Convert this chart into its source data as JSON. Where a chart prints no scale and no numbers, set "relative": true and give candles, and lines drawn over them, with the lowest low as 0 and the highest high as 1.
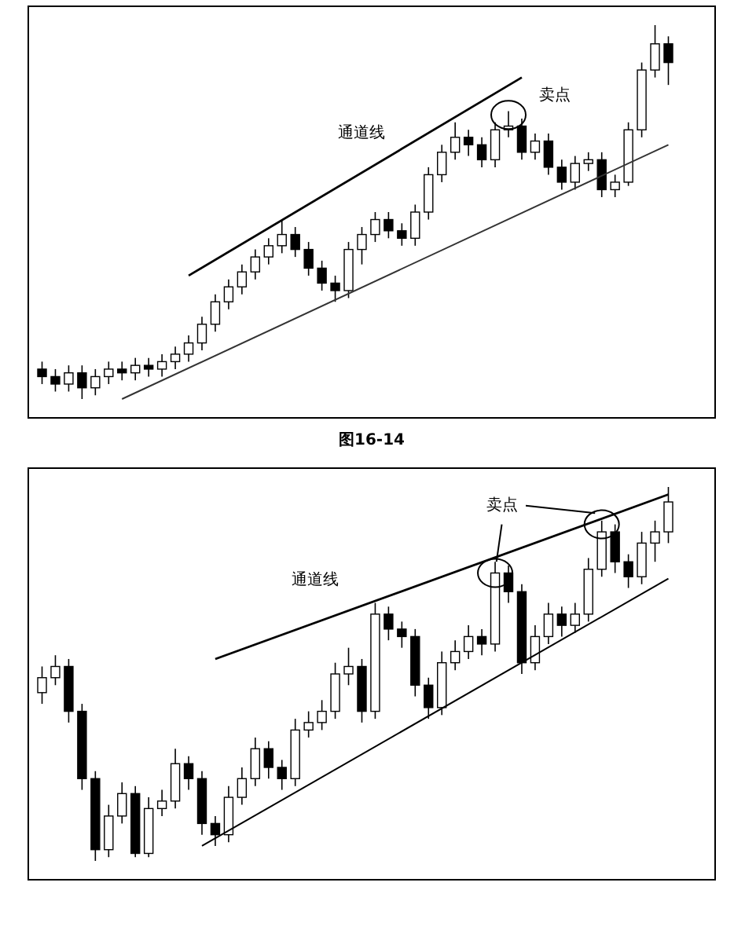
{
  "chart_data": [
    {
      "type": "candlestick",
      "relative": true,
      "annotations": [
        "通道线",
        "卖点",
        "图16-14"
      ],
      "categories": [
        null,
        null,
        null,
        null,
        null,
        null,
        null,
        null,
        null,
        null,
        null,
        null,
        null,
        null,
        null,
        null,
        null,
        null,
        null,
        null,
        null,
        null,
        null,
        null,
        null,
        null,
        null,
        null,
        null,
        null,
        null,
        null,
        null,
        null,
        null,
        null,
        null,
        null,
        null,
        null,
        null,
        null,
        null,
        null,
        null,
        null,
        null,
        null
      ],
      "ohlc": [
        [
          0.08,
          0.1,
          0.04,
          0.06
        ],
        [
          0.06,
          0.08,
          0.02,
          0.04
        ],
        [
          0.04,
          0.09,
          0.02,
          0.07
        ],
        [
          0.07,
          0.09,
          0,
          0.03
        ],
        [
          0.03,
          0.08,
          0.01,
          0.06
        ],
        [
          0.06,
          0.1,
          0.04,
          0.08
        ],
        [
          0.08,
          0.1,
          0.05,
          0.07
        ],
        [
          0.07,
          0.11,
          0.05,
          0.09
        ],
        [
          0.09,
          0.11,
          0.06,
          0.08
        ],
        [
          0.08,
          0.12,
          0.06,
          0.1
        ],
        [
          0.1,
          0.14,
          0.08,
          0.12
        ],
        [
          0.12,
          0.17,
          0.1,
          0.15
        ],
        [
          0.15,
          0.22,
          0.13,
          0.2
        ],
        [
          0.2,
          0.28,
          0.18,
          0.26
        ],
        [
          0.26,
          0.32,
          0.24,
          0.3
        ],
        [
          0.3,
          0.36,
          0.28,
          0.34
        ],
        [
          0.34,
          0.4,
          0.32,
          0.38
        ],
        [
          0.38,
          0.43,
          0.36,
          0.41
        ],
        [
          0.41,
          0.48,
          0.39,
          0.44
        ],
        [
          0.44,
          0.46,
          0.38,
          0.4
        ],
        [
          0.4,
          0.42,
          0.33,
          0.35
        ],
        [
          0.35,
          0.37,
          0.29,
          0.31
        ],
        [
          0.31,
          0.33,
          0.26,
          0.29
        ],
        [
          0.29,
          0.42,
          0.27,
          0.4
        ],
        [
          0.4,
          0.46,
          0.36,
          0.44
        ],
        [
          0.44,
          0.5,
          0.42,
          0.48
        ],
        [
          0.48,
          0.5,
          0.43,
          0.45
        ],
        [
          0.45,
          0.47,
          0.41,
          0.43
        ],
        [
          0.43,
          0.52,
          0.41,
          0.5
        ],
        [
          0.5,
          0.62,
          0.48,
          0.6
        ],
        [
          0.6,
          0.68,
          0.58,
          0.66
        ],
        [
          0.66,
          0.74,
          0.64,
          0.7
        ],
        [
          0.7,
          0.72,
          0.65,
          0.68
        ],
        [
          0.68,
          0.7,
          0.62,
          0.64
        ],
        [
          0.64,
          0.74,
          0.62,
          0.72
        ],
        [
          0.72,
          0.77,
          0.7,
          0.73
        ],
        [
          0.73,
          0.75,
          0.64,
          0.66
        ],
        [
          0.66,
          0.71,
          0.64,
          0.69
        ],
        [
          0.69,
          0.71,
          0.6,
          0.62
        ],
        [
          0.62,
          0.64,
          0.56,
          0.58
        ],
        [
          0.58,
          0.65,
          0.56,
          0.63
        ],
        [
          0.63,
          0.66,
          0.61,
          0.64
        ],
        [
          0.64,
          0.66,
          0.54,
          0.56
        ],
        [
          0.56,
          0.6,
          0.54,
          0.58
        ],
        [
          0.58,
          0.74,
          0.57,
          0.72
        ],
        [
          0.72,
          0.9,
          0.7,
          0.88
        ],
        [
          0.88,
          1.0,
          0.86,
          0.95
        ],
        [
          0.95,
          0.97,
          0.84,
          0.9
        ]
      ],
      "series": [
        {
          "type": "line",
          "color": "#000000",
          "values": [
            null,
            null,
            null,
            null,
            null,
            null,
            null,
            null,
            null,
            null,
            null,
            0.33,
            null,
            null,
            null,
            null,
            null,
            null,
            null,
            null,
            null,
            null,
            null,
            null,
            null,
            null,
            null,
            null,
            null,
            null,
            null,
            null,
            null,
            null,
            null,
            null,
            0.86,
            null,
            null,
            null,
            null,
            null,
            null,
            null,
            null,
            null,
            null,
            null
          ]
        },
        {
          "type": "line",
          "color": "#333333",
          "values": [
            null,
            null,
            null,
            null,
            null,
            null,
            0,
            null,
            null,
            null,
            null,
            null,
            null,
            null,
            null,
            null,
            null,
            null,
            null,
            null,
            null,
            null,
            null,
            null,
            null,
            null,
            null,
            null,
            null,
            null,
            null,
            null,
            null,
            null,
            null,
            null,
            null,
            null,
            null,
            null,
            null,
            null,
            null,
            null,
            null,
            null,
            null,
            0.68
          ]
        }
      ]
    },
    {
      "type": "candlestick",
      "relative": true,
      "annotations": [
        "通道线",
        "卖点"
      ],
      "categories": [
        null,
        null,
        null,
        null,
        null,
        null,
        null,
        null,
        null,
        null,
        null,
        null,
        null,
        null,
        null,
        null,
        null,
        null,
        null,
        null,
        null,
        null,
        null,
        null,
        null,
        null,
        null,
        null,
        null,
        null,
        null,
        null,
        null,
        null,
        null,
        null,
        null,
        null,
        null,
        null,
        null,
        null,
        null,
        null,
        null,
        null,
        null,
        null
      ],
      "ohlc": [
        [
          0.45,
          0.52,
          0.42,
          0.49
        ],
        [
          0.49,
          0.55,
          0.47,
          0.52
        ],
        [
          0.52,
          0.54,
          0.37,
          0.4
        ],
        [
          0.4,
          0.42,
          0.19,
          0.22
        ],
        [
          0.22,
          0.24,
          0,
          0.03
        ],
        [
          0.03,
          0.15,
          0.01,
          0.12
        ],
        [
          0.12,
          0.21,
          0.1,
          0.18
        ],
        [
          0.18,
          0.2,
          0.01,
          0.02
        ],
        [
          0.02,
          0.17,
          0.01,
          0.14
        ],
        [
          0.14,
          0.19,
          0.12,
          0.16
        ],
        [
          0.16,
          0.3,
          0.14,
          0.26
        ],
        [
          0.26,
          0.28,
          0.19,
          0.22
        ],
        [
          0.22,
          0.24,
          0.07,
          0.1
        ],
        [
          0.1,
          0.12,
          0.04,
          0.07
        ],
        [
          0.07,
          0.2,
          0.05,
          0.17
        ],
        [
          0.17,
          0.25,
          0.15,
          0.22
        ],
        [
          0.22,
          0.33,
          0.2,
          0.3
        ],
        [
          0.3,
          0.32,
          0.22,
          0.25
        ],
        [
          0.25,
          0.27,
          0.19,
          0.22
        ],
        [
          0.22,
          0.38,
          0.2,
          0.35
        ],
        [
          0.35,
          0.4,
          0.33,
          0.37
        ],
        [
          0.37,
          0.43,
          0.35,
          0.4
        ],
        [
          0.4,
          0.53,
          0.38,
          0.5
        ],
        [
          0.5,
          0.57,
          0.47,
          0.52
        ],
        [
          0.52,
          0.54,
          0.37,
          0.4
        ],
        [
          0.4,
          0.69,
          0.38,
          0.66
        ],
        [
          0.66,
          0.68,
          0.59,
          0.62
        ],
        [
          0.62,
          0.64,
          0.57,
          0.6
        ],
        [
          0.6,
          0.62,
          0.44,
          0.47
        ],
        [
          0.47,
          0.49,
          0.38,
          0.41
        ],
        [
          0.41,
          0.56,
          0.39,
          0.53
        ],
        [
          0.53,
          0.59,
          0.51,
          0.56
        ],
        [
          0.56,
          0.63,
          0.54,
          0.6
        ],
        [
          0.6,
          0.62,
          0.55,
          0.58
        ],
        [
          0.58,
          0.8,
          0.56,
          0.77
        ],
        [
          0.77,
          0.79,
          0.69,
          0.72
        ],
        [
          0.72,
          0.74,
          0.5,
          0.53
        ],
        [
          0.53,
          0.63,
          0.51,
          0.6
        ],
        [
          0.6,
          0.69,
          0.58,
          0.66
        ],
        [
          0.66,
          0.68,
          0.6,
          0.63
        ],
        [
          0.63,
          0.69,
          0.61,
          0.66
        ],
        [
          0.66,
          0.81,
          0.64,
          0.78
        ],
        [
          0.78,
          0.91,
          0.76,
          0.88
        ],
        [
          0.88,
          0.9,
          0.77,
          0.8
        ],
        [
          0.8,
          0.82,
          0.73,
          0.76
        ],
        [
          0.76,
          0.88,
          0.74,
          0.85
        ],
        [
          0.85,
          0.91,
          0.8,
          0.88
        ],
        [
          0.88,
          1.0,
          0.85,
          0.96
        ]
      ],
      "series": [
        {
          "type": "line",
          "color": "#000000",
          "values": [
            null,
            null,
            null,
            null,
            null,
            null,
            null,
            null,
            null,
            null,
            null,
            null,
            null,
            0.54,
            null,
            null,
            null,
            null,
            null,
            null,
            null,
            null,
            null,
            null,
            null,
            null,
            null,
            null,
            null,
            null,
            null,
            null,
            null,
            null,
            null,
            null,
            null,
            null,
            null,
            null,
            null,
            null,
            null,
            null,
            null,
            null,
            null,
            0.98
          ]
        },
        {
          "type": "line",
          "color": "#000000",
          "values": [
            null,
            null,
            null,
            null,
            null,
            null,
            null,
            null,
            null,
            null,
            null,
            null,
            0.04,
            null,
            null,
            null,
            null,
            null,
            null,
            null,
            null,
            null,
            null,
            null,
            null,
            null,
            null,
            null,
            null,
            null,
            null,
            null,
            null,
            null,
            null,
            null,
            null,
            null,
            null,
            null,
            null,
            null,
            null,
            null,
            null,
            null,
            null,
            0.755
          ]
        }
      ]
    }
  ]
}
